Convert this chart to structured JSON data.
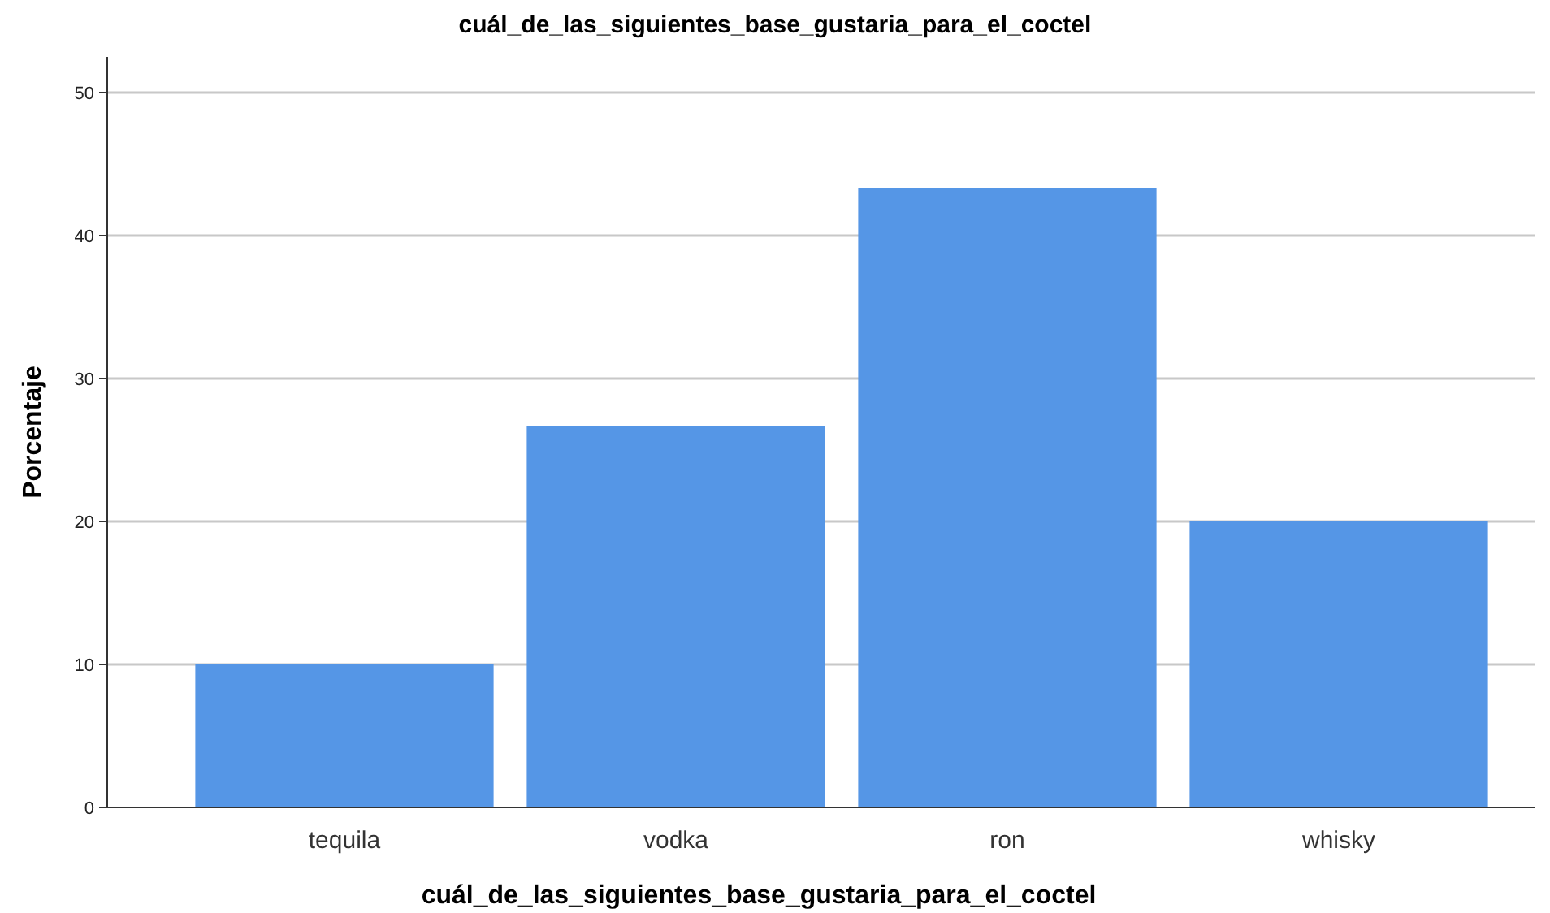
{
  "chart_data": {
    "type": "bar",
    "title": "cuál_de_las_siguientes_base_gustaria_para_el_coctel",
    "xlabel": "cuál_de_las_siguientes_base_gustaria_para_el_coctel",
    "ylabel": "Porcentaje",
    "categories": [
      "tequila",
      "vodka",
      "ron",
      "whisky"
    ],
    "values": [
      10,
      26.7,
      43.3,
      20
    ],
    "color": "#5596e6",
    "ylim": [
      0,
      52.5
    ],
    "yticks": [
      0,
      10,
      20,
      30,
      40,
      50
    ],
    "grid": "y"
  }
}
